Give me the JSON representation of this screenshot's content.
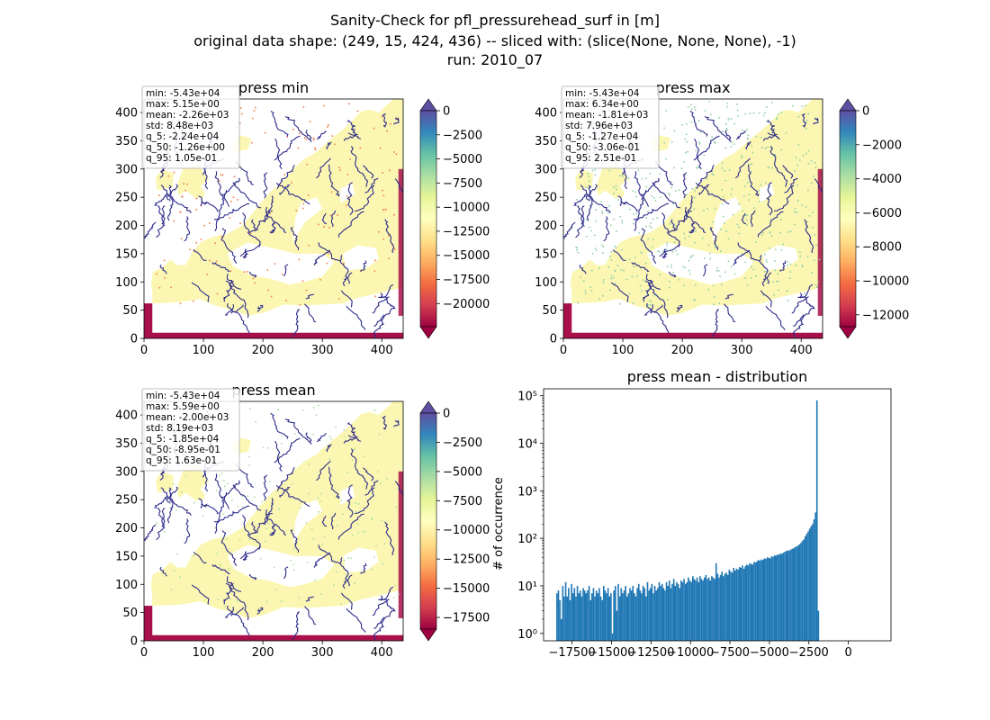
{
  "figure": {
    "title_line1": "Sanity-Check for pfl_pressurehead_surf in [m]",
    "title_line2": "original data shape: (249, 15, 424, 436) -- sliced with: (slice(None, None, None), -1)",
    "title_line3": "run: 2010_07"
  },
  "colors": {
    "water": "#2d2b8a",
    "land_base": "#fbf7b2",
    "border_band": "#a7104a",
    "hist_bar": "#1f77b4",
    "colormap": [
      "#9e0142",
      "#d53e4f",
      "#f46d43",
      "#fdae61",
      "#fee08b",
      "#ffffbf",
      "#e6f598",
      "#abdda4",
      "#66c2a5",
      "#3288bd",
      "#5e4fa2"
    ]
  },
  "chart_data": [
    {
      "type": "heatmap",
      "title": "press min",
      "xticks": [
        0,
        100,
        200,
        300,
        400
      ],
      "yticks": [
        0,
        50,
        100,
        150,
        200,
        250,
        300,
        350,
        400
      ],
      "xlim": [
        0,
        436
      ],
      "ylim": [
        0,
        424
      ],
      "stats": [
        "min: -5.43e+04",
        "max: 5.15e+00",
        "mean: -2.26e+03",
        "std: 8.48e+03",
        "q_5: -2.24e+04",
        "q_50: -1.26e+00",
        "q_95: 1.05e-01"
      ],
      "colorbar": {
        "vmin": -22400,
        "vmax": 0,
        "ticks": [
          0,
          -2500,
          -5000,
          -7500,
          -10000,
          -12500,
          -15000,
          -17500,
          -20000
        ],
        "extend": "both"
      }
    },
    {
      "type": "heatmap",
      "title": "press max",
      "xticks": [
        0,
        100,
        200,
        300,
        400
      ],
      "yticks": [
        0,
        50,
        100,
        150,
        200,
        250,
        300,
        350,
        400
      ],
      "xlim": [
        0,
        436
      ],
      "ylim": [
        0,
        424
      ],
      "stats": [
        "min: -5.43e+04",
        "max: 6.34e+00",
        "mean: -1.81e+03",
        "std: 7.96e+03",
        "q_5: -1.27e+04",
        "q_50: -3.06e-01",
        "q_95: 2.51e-01"
      ],
      "colorbar": {
        "vmin": -12700,
        "vmax": 0,
        "ticks": [
          0,
          -2000,
          -4000,
          -6000,
          -8000,
          -10000,
          -12000
        ],
        "extend": "both"
      }
    },
    {
      "type": "heatmap",
      "title": "press mean",
      "xticks": [
        0,
        100,
        200,
        300,
        400
      ],
      "yticks": [
        0,
        50,
        100,
        150,
        200,
        250,
        300,
        350,
        400
      ],
      "xlim": [
        0,
        436
      ],
      "ylim": [
        0,
        424
      ],
      "stats": [
        "min: -5.43e+04",
        "max: 5.59e+00",
        "mean: -2.00e+03",
        "std: 8.19e+03",
        "q_5: -1.85e+04",
        "q_50: -8.95e-01",
        "q_95: 1.63e-01"
      ],
      "colorbar": {
        "vmin": -18500,
        "vmax": 0,
        "ticks": [
          0,
          -2500,
          -5000,
          -7500,
          -10000,
          -12500,
          -15000,
          -17500
        ],
        "extend": "both"
      }
    },
    {
      "type": "bar",
      "title": "press mean - distribution",
      "xlabel": "",
      "ylabel": "# of occurrence",
      "yscale": "log",
      "xlim": [
        -19300,
        2700
      ],
      "ylim": [
        0.7,
        140000
      ],
      "xticks": [
        -17500,
        -15000,
        -12500,
        -10000,
        -7500,
        -5000,
        -2500,
        0
      ],
      "ytick_labels": [
        "10⁰",
        "10¹",
        "10²",
        "10³",
        "10⁴",
        "10⁵"
      ],
      "bin_start": -18500,
      "bin_width": 92.5,
      "counts": [
        7,
        8,
        5,
        2,
        10,
        6,
        12,
        6,
        9,
        5,
        11,
        7,
        9,
        6,
        10,
        7,
        8,
        6,
        9,
        8,
        7,
        8,
        10,
        5,
        7,
        9,
        6,
        8,
        7,
        9,
        6,
        5,
        10,
        8,
        7,
        9,
        6,
        7,
        1,
        8,
        10,
        3,
        11,
        6,
        9,
        7,
        8,
        10,
        6,
        7,
        9,
        8,
        10,
        7,
        6,
        9,
        11,
        8,
        7,
        10,
        9,
        6,
        12,
        8,
        9,
        11,
        7,
        10,
        8,
        9,
        12,
        10,
        11,
        9,
        8,
        12,
        10,
        13,
        9,
        11,
        14,
        10,
        12,
        11,
        9,
        13,
        12,
        14,
        11,
        12,
        15,
        13,
        12,
        16,
        14,
        13,
        15,
        12,
        16,
        14,
        13,
        15,
        17,
        14,
        15,
        13,
        16,
        15,
        14,
        30,
        18,
        15,
        17,
        20,
        16,
        18,
        19,
        17,
        22,
        20,
        19,
        24,
        21,
        23,
        22,
        25,
        24,
        27,
        23,
        26,
        28,
        27,
        30,
        29,
        28,
        32,
        31,
        33,
        35,
        34,
        36,
        35,
        38,
        37,
        40,
        39,
        38,
        42,
        41,
        44,
        43,
        46,
        45,
        48,
        47,
        50,
        52,
        54,
        56,
        55,
        58,
        60,
        62,
        65,
        68,
        70,
        75,
        80,
        88,
        95,
        110,
        125,
        140,
        160,
        180,
        200,
        250,
        350,
        80000,
        3
      ]
    }
  ]
}
